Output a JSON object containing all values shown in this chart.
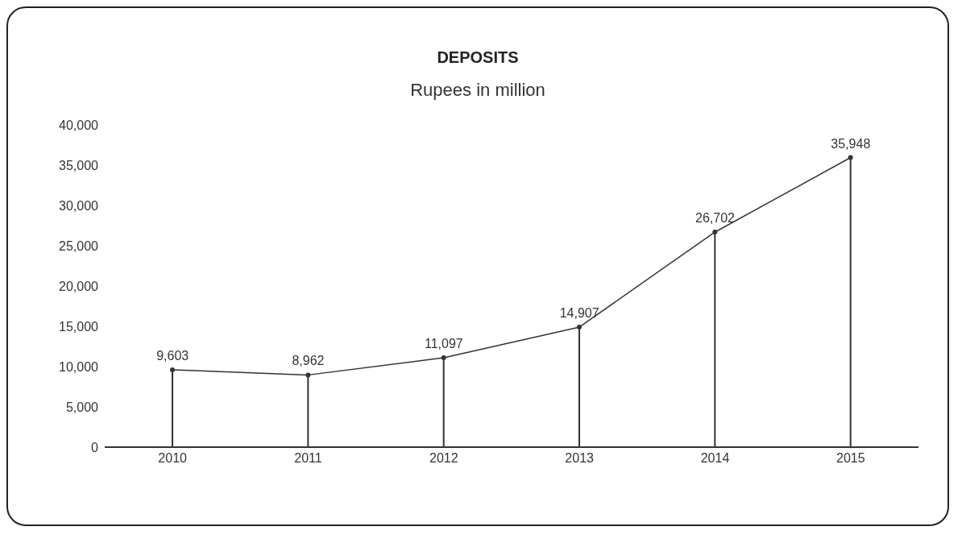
{
  "chart_data": {
    "type": "line",
    "title": "DEPOSITS",
    "subtitle": "Rupees in million",
    "categories": [
      "2010",
      "2011",
      "2012",
      "2013",
      "2014",
      "2015"
    ],
    "series": [
      {
        "color": "#333333",
        "values": [
          9603,
          8962,
          11097,
          14907,
          26702,
          35948
        ],
        "value_labels": [
          "9,603",
          "8,962",
          "11,097",
          "14,907",
          "26,702",
          "35,948"
        ]
      },
      {
        "type": "lollipop",
        "marker": "circle",
        "color": "#333333",
        "values": [
          9603,
          8962,
          11097,
          14907,
          26702,
          35948
        ]
      }
    ],
    "ylim": [
      0,
      40000
    ],
    "yticks": [
      {
        "value": 0,
        "label": "0"
      },
      {
        "value": 5000,
        "label": "5,000"
      },
      {
        "value": 10000,
        "label": "10,000"
      },
      {
        "value": 15000,
        "label": "15,000"
      },
      {
        "value": 20000,
        "label": "20,000"
      },
      {
        "value": 25000,
        "label": "25,000"
      },
      {
        "value": 30000,
        "label": "30,000"
      },
      {
        "value": 35000,
        "label": "35,000"
      },
      {
        "value": 40000,
        "label": "40,000"
      }
    ],
    "grid": false,
    "legend": false,
    "marker": "none",
    "line_style": "solid"
  }
}
